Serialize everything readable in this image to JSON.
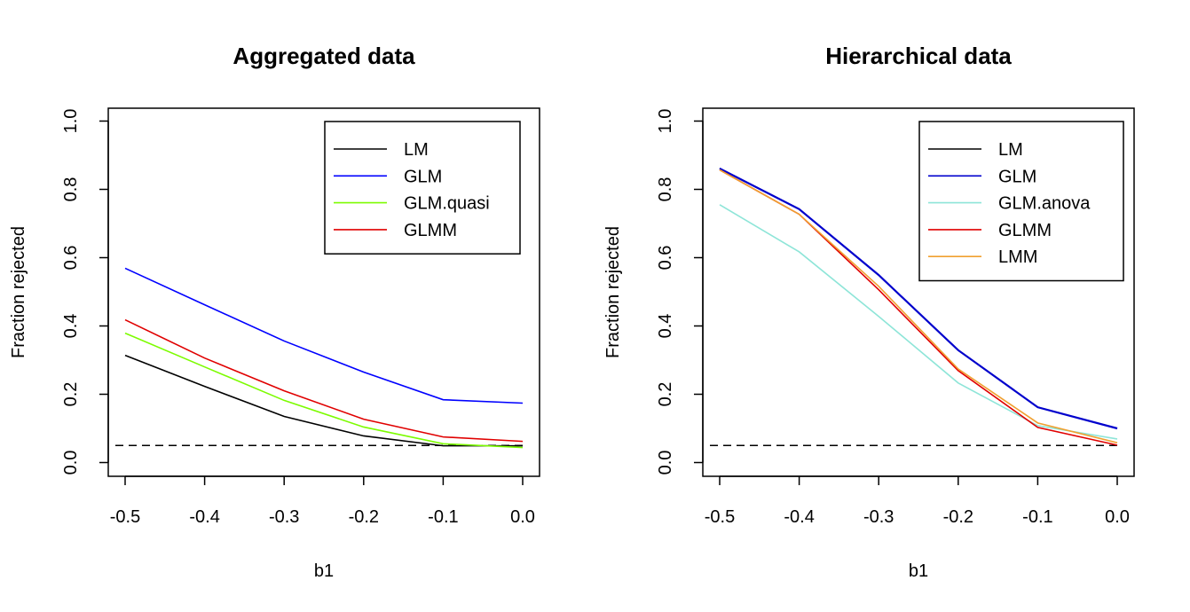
{
  "chart_data": [
    {
      "type": "line",
      "title": "Aggregated data",
      "xlabel": "b1",
      "ylabel": "Fraction rejected",
      "xlim": [
        -0.5,
        0.0
      ],
      "ylim": [
        0.0,
        1.0
      ],
      "x": [
        -0.5,
        -0.4,
        -0.3,
        -0.2,
        -0.1,
        0.0
      ],
      "xticks": [
        "-0.5",
        "-0.4",
        "-0.3",
        "-0.2",
        "-0.1",
        "0.0"
      ],
      "yticks": [
        "0.0",
        "0.2",
        "0.4",
        "0.6",
        "0.8",
        "1.0"
      ],
      "grid": false,
      "legend_position": "top-right",
      "reference_line": {
        "y": 0.05,
        "style": "dashed",
        "color": "#000000"
      },
      "series": [
        {
          "name": "LM",
          "color": "#000000",
          "values": [
            0.314,
            0.223,
            0.135,
            0.078,
            0.049,
            0.049
          ]
        },
        {
          "name": "GLM",
          "color": "#0000ff",
          "values": [
            0.569,
            0.462,
            0.356,
            0.265,
            0.184,
            0.174
          ]
        },
        {
          "name": "GLM.quasi",
          "color": "#7cfc00",
          "values": [
            0.379,
            0.28,
            0.182,
            0.104,
            0.055,
            0.044
          ]
        },
        {
          "name": "GLMM",
          "color": "#e00000",
          "values": [
            0.418,
            0.306,
            0.21,
            0.127,
            0.075,
            0.062
          ]
        }
      ]
    },
    {
      "type": "line",
      "title": "Hierarchical data",
      "xlabel": "b1",
      "ylabel": "Fraction rejected",
      "xlim": [
        -0.5,
        0.0
      ],
      "ylim": [
        0.0,
        1.0
      ],
      "x": [
        -0.5,
        -0.4,
        -0.3,
        -0.2,
        -0.1,
        0.0
      ],
      "xticks": [
        "-0.5",
        "-0.4",
        "-0.3",
        "-0.2",
        "-0.1",
        "0.0"
      ],
      "yticks": [
        "0.0",
        "0.2",
        "0.4",
        "0.6",
        "0.8",
        "1.0"
      ],
      "grid": false,
      "legend_position": "top-right",
      "reference_line": {
        "y": 0.05,
        "style": "dashed",
        "color": "#000000"
      },
      "series": [
        {
          "name": "LM",
          "color": "#000000",
          "values": [
            0.861,
            0.742,
            0.549,
            0.329,
            0.162,
            0.1
          ]
        },
        {
          "name": "GLM",
          "color": "#0000cd",
          "values": [
            0.861,
            0.742,
            0.549,
            0.329,
            0.162,
            0.1
          ]
        },
        {
          "name": "GLM.anova",
          "color": "#8ee5d8",
          "values": [
            0.755,
            0.617,
            0.428,
            0.233,
            0.108,
            0.069
          ]
        },
        {
          "name": "GLMM",
          "color": "#e00000",
          "values": [
            0.857,
            0.727,
            0.506,
            0.269,
            0.103,
            0.051
          ]
        },
        {
          "name": "LMM",
          "color": "#f0a030",
          "values": [
            0.857,
            0.727,
            0.516,
            0.274,
            0.116,
            0.058
          ]
        }
      ]
    }
  ]
}
